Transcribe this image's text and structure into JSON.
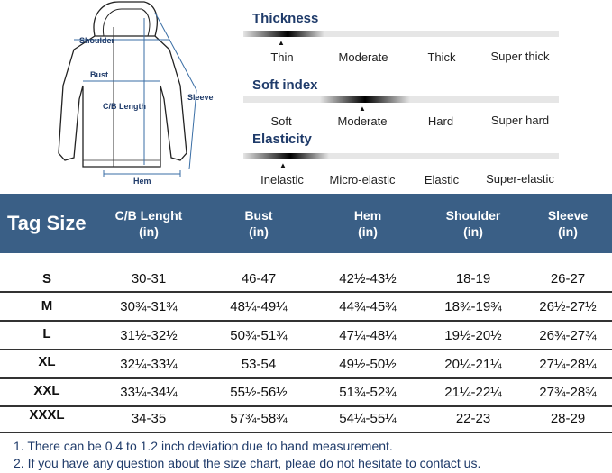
{
  "diagram": {
    "labels": {
      "shoulder": "Shoulder",
      "bust": "Bust",
      "cb_length": "C/B Length",
      "sleeve": "Sleeve",
      "hem": "Hem"
    }
  },
  "scales": [
    {
      "title": "Thickness",
      "options": [
        "Thin",
        "Moderate",
        "Thick",
        "Super thick"
      ],
      "selected": "Thin"
    },
    {
      "title": "Soft index",
      "options": [
        "Soft",
        "Moderate",
        "Hard",
        "Super hard"
      ],
      "selected": "Moderate"
    },
    {
      "title": "Elasticity",
      "options": [
        "Inelastic",
        "Micro-elastic",
        "Elastic",
        "Super-elastic"
      ],
      "selected": "Inelastic"
    }
  ],
  "table": {
    "headers": [
      {
        "line1": "Tag Size",
        "line2": ""
      },
      {
        "line1": "C/B Lenght",
        "line2": "(in)"
      },
      {
        "line1": "Bust",
        "line2": "(in)"
      },
      {
        "line1": "Hem",
        "line2": "(in)"
      },
      {
        "line1": "Shoulder",
        "line2": "(in)"
      },
      {
        "line1": "Sleeve",
        "line2": "(in)"
      }
    ],
    "rows": [
      [
        "S",
        "30-31",
        "46-47",
        "42½-43½",
        "18-19",
        "26-27"
      ],
      [
        "M",
        "30¾-31¾",
        "48¼-49¼",
        "44¾-45¾",
        "18¾-19¾",
        "26½-27½"
      ],
      [
        "L",
        "31½-32½",
        "50¾-51¾",
        "47¼-48¼",
        "19½-20½",
        "26¾-27¾"
      ],
      [
        "XL",
        "32¼-33¼",
        "53-54",
        "49½-50½",
        "20¼-21¼",
        "27¼-28¼"
      ],
      [
        "XXL",
        "33¼-34¼",
        "55½-56½",
        "51¾-52¾",
        "21¼-22¼",
        "27¾-28¾"
      ],
      [
        "XXXL",
        "34-35",
        "57¾-58¾",
        "54¼-55¼",
        "22-23",
        "28-29"
      ]
    ]
  },
  "notes": [
    "1. There can be 0.4 to 1.2 inch deviation due to hand measurement.",
    "2. If you have any question about the size chart, pleae do not hesitate to contact us."
  ],
  "colors": {
    "header_bg": "#3a5f86",
    "accent_text": "#1f3b6a"
  }
}
